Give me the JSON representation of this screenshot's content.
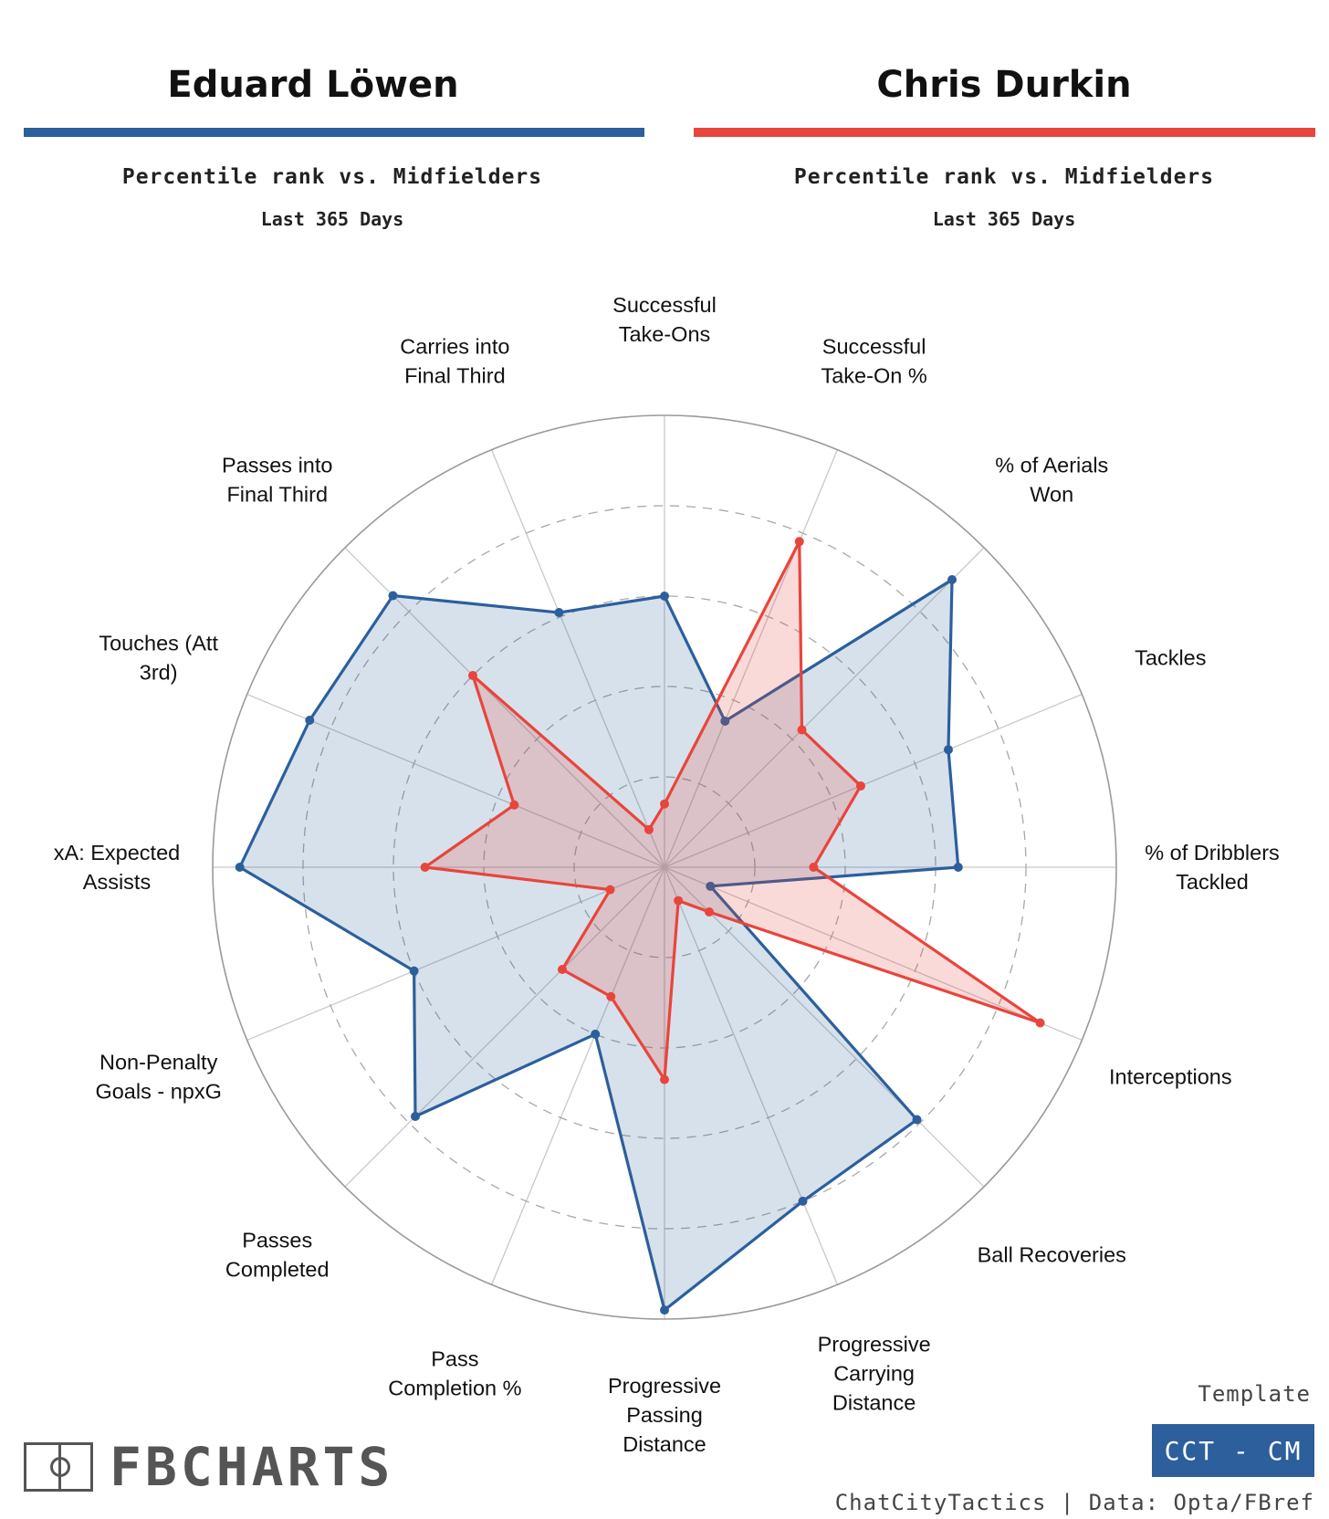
{
  "header": {
    "player1": {
      "name": "Eduard Löwen",
      "subtitle": "Percentile rank vs. Midfielders",
      "period": "Last 365 Days",
      "color": "#2c5f9c"
    },
    "player2": {
      "name": "Chris Durkin",
      "subtitle": "Percentile rank vs. Midfielders",
      "period": "Last 365 Days",
      "color": "#e8453c"
    }
  },
  "chart_data": {
    "type": "radar",
    "range": [
      0,
      100
    ],
    "grid_levels": [
      20,
      40,
      60,
      80,
      100
    ],
    "axes": [
      [
        "Successful",
        "Take-Ons"
      ],
      [
        "Successful",
        "Take-On %"
      ],
      [
        "% of Aerials",
        "Won"
      ],
      [
        "Tackles"
      ],
      [
        "% of Dribblers",
        "Tackled"
      ],
      [
        "Interceptions"
      ],
      [
        "Ball Recoveries"
      ],
      [
        "Progressive",
        "Carrying",
        "Distance"
      ],
      [
        "Progressive",
        "Passing",
        "Distance"
      ],
      [
        "Pass",
        "Completion %"
      ],
      [
        "Passes",
        "Completed"
      ],
      [
        "Non-Penalty",
        "Goals - npxG"
      ],
      [
        "xA: Expected",
        "Assists"
      ],
      [
        "Touches (Att",
        "3rd)"
      ],
      [
        "Passes into",
        "Final Third"
      ],
      [
        "Carries into",
        "Final Third"
      ]
    ],
    "series": [
      {
        "name": "Eduard Löwen",
        "color": "#2c5f9c",
        "fill": "rgba(44,95,156,0.19)",
        "values": [
          60,
          35,
          90,
          68,
          65,
          11,
          79,
          80,
          98,
          40,
          78,
          60,
          94,
          85,
          85,
          61
        ]
      },
      {
        "name": "Chris Durkin",
        "color": "#e8453c",
        "fill": "rgba(232,69,60,0.20)",
        "values": [
          14,
          78,
          43,
          47,
          33,
          90,
          14,
          8,
          47,
          31,
          32,
          13,
          53,
          36,
          60,
          9
        ]
      }
    ]
  },
  "footer": {
    "logo_text": "FBCHARTS",
    "template_label": "Template",
    "template_name": "CCT - CM",
    "credit": "ChatCityTactics | Data: Opta/FBref"
  }
}
